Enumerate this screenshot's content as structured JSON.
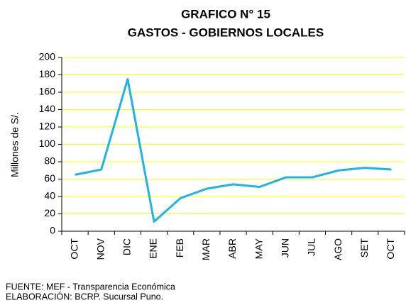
{
  "chart_data": {
    "type": "line",
    "title": "GRAFICO N° 15",
    "subtitle": "GASTOS - GOBIERNOS LOCALES",
    "y_label": "Millones de S/.",
    "categories": [
      "OCT",
      "NOV",
      "DIC",
      "ENE",
      "FEB",
      "MAR",
      "ABR",
      "MAY",
      "JUN",
      "JUL",
      "AGO",
      "SET",
      "OCT"
    ],
    "values": [
      65,
      71,
      175,
      11,
      38,
      49,
      54,
      51,
      62,
      62,
      70,
      73,
      71
    ],
    "color": "#1eb4e8",
    "grid_color": "#ffff00",
    "ylim": [
      0,
      200
    ],
    "yticks": [
      0,
      20,
      40,
      60,
      80,
      100,
      120,
      140,
      160,
      180,
      200
    ],
    "grid": true,
    "notes": [
      "FUENTE: MEF - Transparencia Económica",
      "ELABORACIÓN: BCRP.  Sucursal Puno."
    ]
  }
}
